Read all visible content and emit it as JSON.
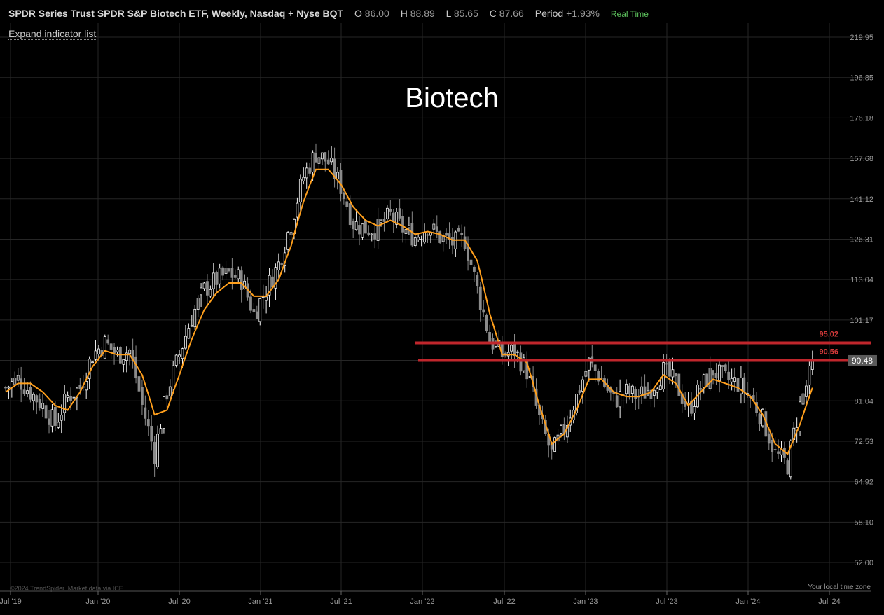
{
  "header": {
    "symbol": "SPDR Series Trust SPDR S&P Biotech ETF, Weekly, Nasdaq + Nyse BQT",
    "o_label": "O",
    "o_value": "86.00",
    "h_label": "H",
    "h_value": "88.89",
    "l_label": "L",
    "l_value": "85.65",
    "c_label": "C",
    "c_value": "87.66",
    "period_label": "Period",
    "period_value": "+1.93%",
    "realtime": "Real Time"
  },
  "expand_indicator": "Expand indicator list",
  "watermark": "©2024 TrendSpider. Market data via ICE.",
  "timezone": "Your local time zone",
  "colors": {
    "background": "#000000",
    "candle_up": "#f2f2f2",
    "candle_down": "#8a8a8a",
    "moving_average": "#ff9f1c",
    "level_line": "#c0262c",
    "grid": "#262626"
  },
  "chart_data": {
    "type": "candlestick",
    "title": "Biotech",
    "y_scale": "log",
    "ylim": [
      50,
      240
    ],
    "y_ticks": [
      "219.95",
      "196.85",
      "176.18",
      "157.68",
      "141.12",
      "126.31",
      "113.04",
      "101.17",
      "90.55",
      "81.04",
      "72.53",
      "64.92",
      "58.10",
      "52.00"
    ],
    "x_ticks": [
      "Jul '19",
      "Jan '20",
      "Jul '20",
      "Jan '21",
      "Jul '21",
      "Jan '22",
      "Jul '22",
      "Jan '23",
      "Jul '23",
      "Jan '24",
      "Jul '24"
    ],
    "current_price_label": "90.48",
    "levels": [
      {
        "label": "95.02",
        "value": 95.02,
        "start": "Dec '21"
      },
      {
        "label": "90.56",
        "value": 90.56,
        "start": "Dec '21"
      }
    ],
    "series": [
      {
        "name": "weekly close (approx.)",
        "x_start": "Jun '19",
        "weeks_per_point": 4,
        "values": [
          84,
          86,
          83,
          80,
          76,
          82,
          84,
          92,
          95,
          92,
          93,
          80,
          70,
          83,
          92,
          102,
          110,
          113,
          115,
          113,
          103,
          110,
          118,
          132,
          150,
          160,
          156,
          146,
          132,
          130,
          130,
          135,
          130,
          127,
          131,
          127,
          125,
          126,
          110,
          96,
          92,
          93,
          88,
          77,
          70,
          75,
          82,
          90,
          86,
          81,
          83,
          82,
          84,
          88,
          85,
          79,
          84,
          88,
          86,
          85,
          82,
          77,
          70,
          68,
          80,
          89
        ]
      },
      {
        "name": "moving average",
        "x_start": "Jun '19",
        "weeks_per_point": 4,
        "values": [
          83,
          85,
          85,
          83,
          80,
          79,
          83,
          89,
          93,
          92,
          92,
          87,
          78,
          79,
          87,
          96,
          104,
          109,
          112,
          112,
          108,
          108,
          113,
          124,
          140,
          153,
          153,
          147,
          138,
          133,
          131,
          133,
          131,
          128,
          129,
          128,
          126,
          126,
          119,
          103,
          92,
          92,
          90,
          80,
          72,
          74,
          79,
          86,
          86,
          83,
          82,
          82,
          83,
          87,
          85,
          80,
          83,
          86,
          85,
          84,
          82,
          78,
          72,
          70,
          76,
          84
        ]
      }
    ]
  }
}
